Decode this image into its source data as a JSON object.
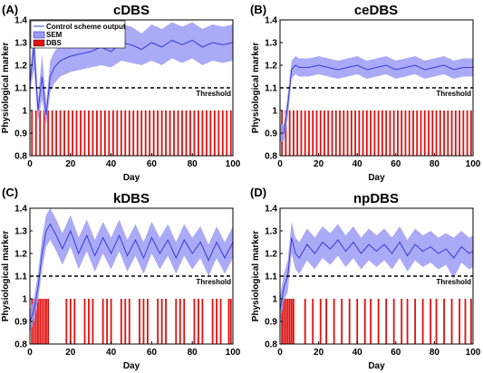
{
  "colors": {
    "mean": "#3b3bdc",
    "sem": "#9b9bf5",
    "dbs": "#e01010",
    "threshold": "#000000",
    "axes": "#000000"
  },
  "legend": {
    "entries": [
      "Control scheme output",
      "SEM",
      "DBS"
    ]
  },
  "chart_data": [
    {
      "type": "line",
      "panel_label": "(A)",
      "title": "cDBS",
      "xlabel": "Day",
      "ylabel": "Physiological marker",
      "xlim": [
        0,
        100
      ],
      "ylim": [
        0.8,
        1.4
      ],
      "xticks": [
        "0",
        "20",
        "40",
        "60",
        "80",
        "100"
      ],
      "yticks": [
        "0.8",
        "0.9",
        "1",
        "1.1",
        "1.2",
        "1.3",
        "1.4"
      ],
      "threshold": {
        "value": 1.1,
        "label": "Threshold"
      },
      "legend_placement": "top-left",
      "series": [
        {
          "name": "Control scheme output",
          "x": [
            0,
            2,
            4,
            6,
            8,
            10,
            12,
            15,
            20,
            25,
            30,
            35,
            40,
            45,
            50,
            55,
            60,
            65,
            70,
            75,
            80,
            85,
            90,
            95,
            100
          ],
          "values": [
            1.12,
            1.28,
            1.0,
            1.15,
            0.98,
            1.15,
            1.19,
            1.22,
            1.24,
            1.25,
            1.26,
            1.28,
            1.26,
            1.3,
            1.29,
            1.27,
            1.3,
            1.28,
            1.31,
            1.29,
            1.31,
            1.28,
            1.3,
            1.29,
            1.3
          ]
        },
        {
          "name": "SEM",
          "x": [
            0,
            2,
            4,
            6,
            8,
            10,
            12,
            15,
            20,
            25,
            30,
            35,
            40,
            45,
            50,
            55,
            60,
            65,
            70,
            75,
            80,
            85,
            90,
            95,
            100
          ],
          "lower": [
            1.08,
            1.18,
            0.95,
            1.05,
            0.93,
            1.08,
            1.12,
            1.15,
            1.17,
            1.18,
            1.19,
            1.2,
            1.19,
            1.22,
            1.21,
            1.2,
            1.22,
            1.2,
            1.23,
            1.21,
            1.23,
            1.2,
            1.22,
            1.21,
            1.22
          ],
          "upper": [
            1.16,
            1.38,
            1.05,
            1.25,
            1.03,
            1.22,
            1.26,
            1.29,
            1.31,
            1.32,
            1.33,
            1.36,
            1.33,
            1.38,
            1.37,
            1.34,
            1.38,
            1.36,
            1.39,
            1.37,
            1.39,
            1.36,
            1.38,
            1.37,
            1.38
          ]
        },
        {
          "name": "DBS",
          "days": [
            1,
            3,
            5,
            7,
            9,
            11,
            13,
            15,
            17,
            19,
            21,
            23,
            25,
            27,
            29,
            31,
            33,
            35,
            37,
            39,
            41,
            43,
            45,
            47,
            49,
            51,
            53,
            55,
            57,
            59,
            61,
            63,
            65,
            67,
            69,
            71,
            73,
            75,
            77,
            79,
            81,
            83,
            85,
            87,
            89,
            91,
            93,
            95,
            97,
            99
          ],
          "value": 1.0
        }
      ]
    },
    {
      "type": "line",
      "panel_label": "(B)",
      "title": "ceDBS",
      "xlabel": "Day",
      "ylabel": "Physiological marker",
      "xlim": [
        0,
        100
      ],
      "ylim": [
        0.8,
        1.4
      ],
      "xticks": [
        "0",
        "20",
        "40",
        "60",
        "80",
        "100"
      ],
      "yticks": [
        "0.8",
        "0.9",
        "1",
        "1.1",
        "1.2",
        "1.3",
        "1.4"
      ],
      "threshold": {
        "value": 1.1,
        "label": "Threshold"
      },
      "series": [
        {
          "name": "Control scheme output",
          "x": [
            0,
            2,
            4,
            6,
            8,
            10,
            15,
            20,
            25,
            30,
            35,
            40,
            45,
            50,
            55,
            60,
            65,
            70,
            75,
            80,
            85,
            90,
            95,
            100
          ],
          "values": [
            0.9,
            0.9,
            1.02,
            1.18,
            1.2,
            1.19,
            1.19,
            1.2,
            1.19,
            1.18,
            1.19,
            1.2,
            1.18,
            1.19,
            1.2,
            1.18,
            1.19,
            1.2,
            1.18,
            1.19,
            1.2,
            1.18,
            1.19,
            1.19
          ]
        },
        {
          "name": "SEM",
          "x": [
            0,
            2,
            4,
            6,
            8,
            10,
            15,
            20,
            25,
            30,
            35,
            40,
            45,
            50,
            55,
            60,
            65,
            70,
            75,
            80,
            85,
            90,
            95,
            100
          ],
          "lower": [
            0.86,
            0.86,
            0.97,
            1.14,
            1.16,
            1.15,
            1.15,
            1.16,
            1.15,
            1.14,
            1.15,
            1.16,
            1.14,
            1.15,
            1.16,
            1.14,
            1.15,
            1.16,
            1.14,
            1.15,
            1.16,
            1.14,
            1.15,
            1.15
          ],
          "upper": [
            0.94,
            0.94,
            1.07,
            1.22,
            1.24,
            1.23,
            1.23,
            1.24,
            1.23,
            1.22,
            1.23,
            1.24,
            1.22,
            1.23,
            1.24,
            1.22,
            1.23,
            1.24,
            1.22,
            1.23,
            1.24,
            1.22,
            1.23,
            1.23
          ]
        },
        {
          "name": "DBS",
          "days": [
            1,
            3,
            5,
            7,
            9,
            11,
            13,
            15,
            17,
            19,
            21,
            23,
            25,
            27,
            29,
            31,
            33,
            35,
            37,
            39,
            41,
            43,
            45,
            47,
            49,
            51,
            53,
            55,
            57,
            59,
            61,
            63,
            65,
            67,
            69,
            71,
            73,
            75,
            77,
            79,
            81,
            83,
            85,
            87,
            89,
            91,
            93,
            95,
            97,
            99
          ],
          "value": 1.0
        }
      ]
    },
    {
      "type": "line",
      "panel_label": "(C)",
      "title": "kDBS",
      "xlabel": "Day",
      "ylabel": "Physiological marker",
      "xlim": [
        0,
        100
      ],
      "ylim": [
        0.8,
        1.4
      ],
      "xticks": [
        "0",
        "20",
        "40",
        "60",
        "80",
        "100"
      ],
      "yticks": [
        "0.8",
        "0.9",
        "1",
        "1.1",
        "1.2",
        "1.3",
        "1.4"
      ],
      "threshold": {
        "value": 1.1,
        "label": "Threshold"
      },
      "series": [
        {
          "name": "Control scheme output",
          "x": [
            0,
            2,
            4,
            6,
            8,
            10,
            13,
            16,
            20,
            24,
            28,
            32,
            36,
            40,
            44,
            48,
            52,
            56,
            60,
            64,
            68,
            72,
            76,
            80,
            84,
            88,
            92,
            96,
            100
          ],
          "values": [
            0.9,
            0.95,
            1.05,
            1.2,
            1.3,
            1.33,
            1.28,
            1.22,
            1.3,
            1.2,
            1.28,
            1.19,
            1.27,
            1.2,
            1.28,
            1.19,
            1.26,
            1.18,
            1.27,
            1.2,
            1.26,
            1.18,
            1.26,
            1.2,
            1.25,
            1.17,
            1.25,
            1.18,
            1.25
          ]
        },
        {
          "name": "SEM",
          "x": [
            0,
            2,
            4,
            6,
            8,
            10,
            13,
            16,
            20,
            24,
            28,
            32,
            36,
            40,
            44,
            48,
            52,
            56,
            60,
            64,
            68,
            72,
            76,
            80,
            84,
            88,
            92,
            96,
            100
          ],
          "lower": [
            0.85,
            0.9,
            0.99,
            1.13,
            1.23,
            1.26,
            1.21,
            1.15,
            1.23,
            1.13,
            1.21,
            1.12,
            1.2,
            1.13,
            1.21,
            1.12,
            1.19,
            1.11,
            1.2,
            1.13,
            1.19,
            1.11,
            1.19,
            1.13,
            1.18,
            1.1,
            1.18,
            1.11,
            1.18
          ],
          "upper": [
            0.95,
            1.0,
            1.11,
            1.27,
            1.37,
            1.4,
            1.35,
            1.29,
            1.37,
            1.27,
            1.35,
            1.26,
            1.34,
            1.27,
            1.35,
            1.26,
            1.33,
            1.25,
            1.34,
            1.27,
            1.33,
            1.25,
            1.33,
            1.27,
            1.32,
            1.24,
            1.32,
            1.25,
            1.32
          ]
        },
        {
          "name": "DBS",
          "days": [
            1,
            2,
            3,
            4,
            5,
            6,
            7,
            8,
            9,
            18,
            20,
            22,
            27,
            29,
            31,
            36,
            38,
            40,
            45,
            47,
            49,
            54,
            56,
            58,
            63,
            65,
            67,
            72,
            74,
            76,
            81,
            83,
            85,
            90,
            92,
            94,
            98,
            99
          ],
          "value": 1.0
        }
      ]
    },
    {
      "type": "line",
      "panel_label": "(D)",
      "title": "npDBS",
      "xlabel": "Day",
      "ylabel": "Physiological marker",
      "xlim": [
        0,
        100
      ],
      "ylim": [
        0.8,
        1.4
      ],
      "xticks": [
        "0",
        "20",
        "40",
        "60",
        "80",
        "100"
      ],
      "yticks": [
        "0.8",
        "0.9",
        "1",
        "1.1",
        "1.2",
        "1.3",
        "1.4"
      ],
      "threshold": {
        "value": 1.1,
        "label": "Threshold"
      },
      "series": [
        {
          "name": "Control scheme output",
          "x": [
            0,
            2,
            4,
            6,
            8,
            10,
            14,
            18,
            22,
            26,
            30,
            34,
            38,
            42,
            46,
            50,
            54,
            58,
            62,
            66,
            70,
            74,
            78,
            82,
            86,
            90,
            94,
            98,
            100
          ],
          "values": [
            0.95,
            1.05,
            1.1,
            1.27,
            1.2,
            1.18,
            1.24,
            1.2,
            1.25,
            1.22,
            1.26,
            1.21,
            1.25,
            1.2,
            1.24,
            1.21,
            1.24,
            1.2,
            1.25,
            1.19,
            1.24,
            1.21,
            1.23,
            1.2,
            1.22,
            1.18,
            1.23,
            1.2,
            1.21
          ]
        },
        {
          "name": "SEM",
          "x": [
            0,
            2,
            4,
            6,
            8,
            10,
            14,
            18,
            22,
            26,
            30,
            34,
            38,
            42,
            46,
            50,
            54,
            58,
            62,
            66,
            70,
            74,
            78,
            82,
            86,
            90,
            94,
            98,
            100
          ],
          "lower": [
            0.89,
            0.99,
            1.03,
            1.2,
            1.13,
            1.11,
            1.17,
            1.13,
            1.18,
            1.15,
            1.19,
            1.14,
            1.18,
            1.13,
            1.17,
            1.14,
            1.17,
            1.13,
            1.18,
            1.12,
            1.17,
            1.14,
            1.16,
            1.13,
            1.15,
            1.09,
            1.16,
            1.13,
            1.14
          ],
          "upper": [
            1.01,
            1.11,
            1.17,
            1.34,
            1.27,
            1.25,
            1.31,
            1.27,
            1.32,
            1.29,
            1.33,
            1.28,
            1.32,
            1.27,
            1.31,
            1.28,
            1.31,
            1.27,
            1.32,
            1.26,
            1.31,
            1.28,
            1.3,
            1.27,
            1.29,
            1.27,
            1.3,
            1.27,
            1.28
          ]
        },
        {
          "name": "DBS",
          "days": [
            1,
            2,
            3,
            4,
            5,
            6,
            7,
            13,
            17,
            21,
            24,
            28,
            32,
            36,
            40,
            44,
            47,
            51,
            55,
            59,
            63,
            66,
            70,
            74,
            78,
            81,
            85,
            89,
            93,
            96,
            99
          ],
          "value": 1.0
        }
      ]
    }
  ]
}
